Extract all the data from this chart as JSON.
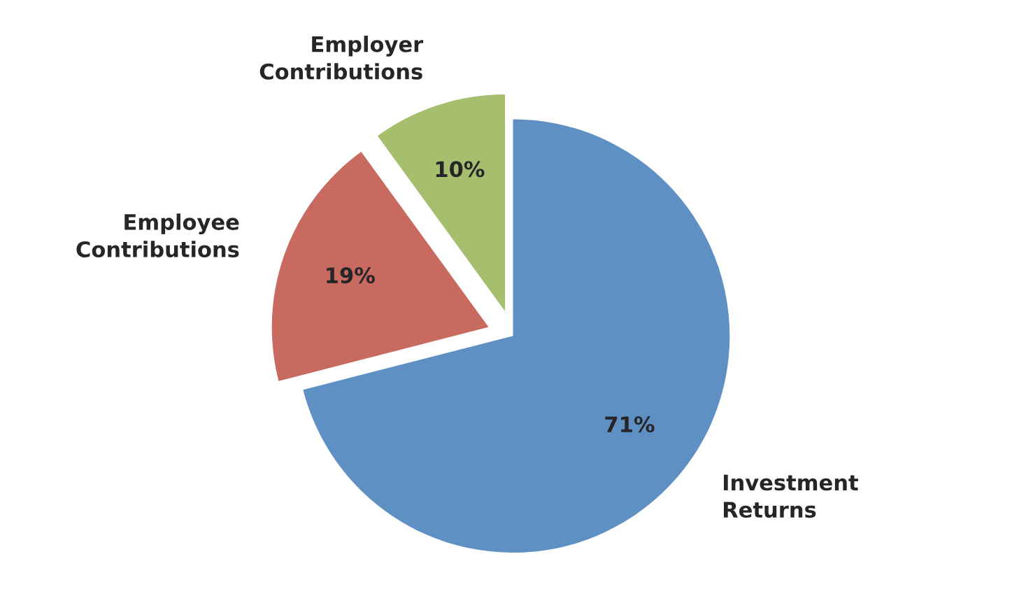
{
  "chart_data": {
    "type": "pie",
    "categories": [
      "Investment Returns",
      "Employee Contributions",
      "Employer Contributions"
    ],
    "values": [
      71,
      19,
      10
    ],
    "colors": [
      "#5f90c4",
      "#c96a61",
      "#a6bf6e"
    ],
    "value_labels": [
      "71%",
      "19%",
      "10%"
    ],
    "legend": false
  }
}
